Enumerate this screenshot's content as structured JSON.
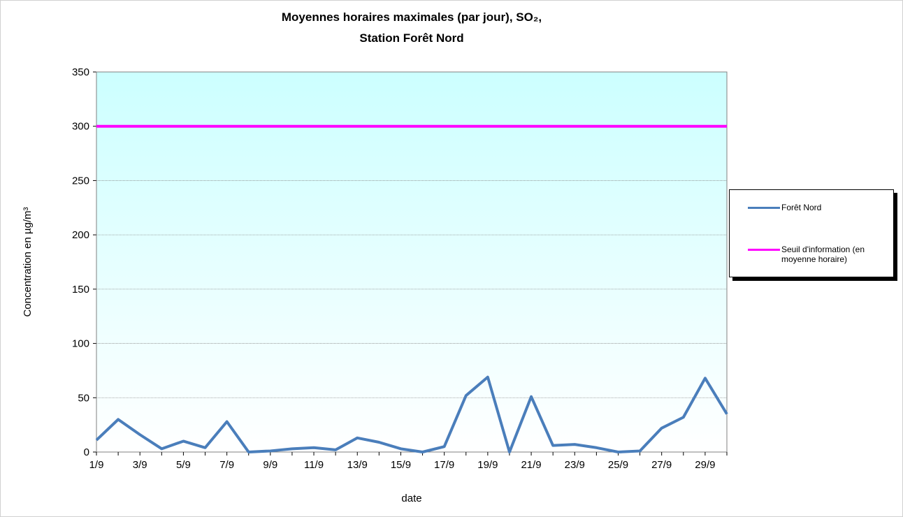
{
  "chart_data": {
    "type": "line",
    "title": "Moyennes horaires maximales (par jour), SO₂,",
    "subtitle": "Station Forêt Nord",
    "x_label": "date",
    "y_label": "Concentration en µg/m³",
    "categories": [
      "1/9",
      null,
      "3/9",
      null,
      "5/9",
      null,
      "7/9",
      null,
      "9/9",
      null,
      "11/9",
      null,
      "13/9",
      null,
      "15/9",
      null,
      "17/9",
      null,
      "19/9",
      null,
      "21/9",
      null,
      "23/9",
      null,
      "25/9",
      null,
      "27/9",
      null,
      "29/9",
      null
    ],
    "series": [
      {
        "name": "Forêt Nord",
        "color": "#4a7ebb",
        "values": [
          11,
          30,
          16,
          3,
          10,
          4,
          28,
          0,
          1,
          3,
          4,
          2,
          13,
          9,
          3,
          0,
          5,
          52,
          69,
          0,
          51,
          6,
          7,
          4,
          0,
          1,
          22,
          32,
          68,
          35
        ]
      },
      {
        "name": "Seuil d'information (en moyenne horaire)",
        "color": "#ff00ff",
        "values": [
          300,
          300,
          300,
          300,
          300,
          300,
          300,
          300,
          300,
          300,
          300,
          300,
          300,
          300,
          300,
          300,
          300,
          300,
          300,
          300,
          300,
          300,
          300,
          300,
          300,
          300,
          300,
          300,
          300,
          300
        ]
      }
    ],
    "ylim": [
      0,
      350
    ],
    "yticks": [
      0,
      50,
      100,
      150,
      200,
      250,
      300,
      350
    ],
    "grid": true,
    "legend": "right"
  }
}
